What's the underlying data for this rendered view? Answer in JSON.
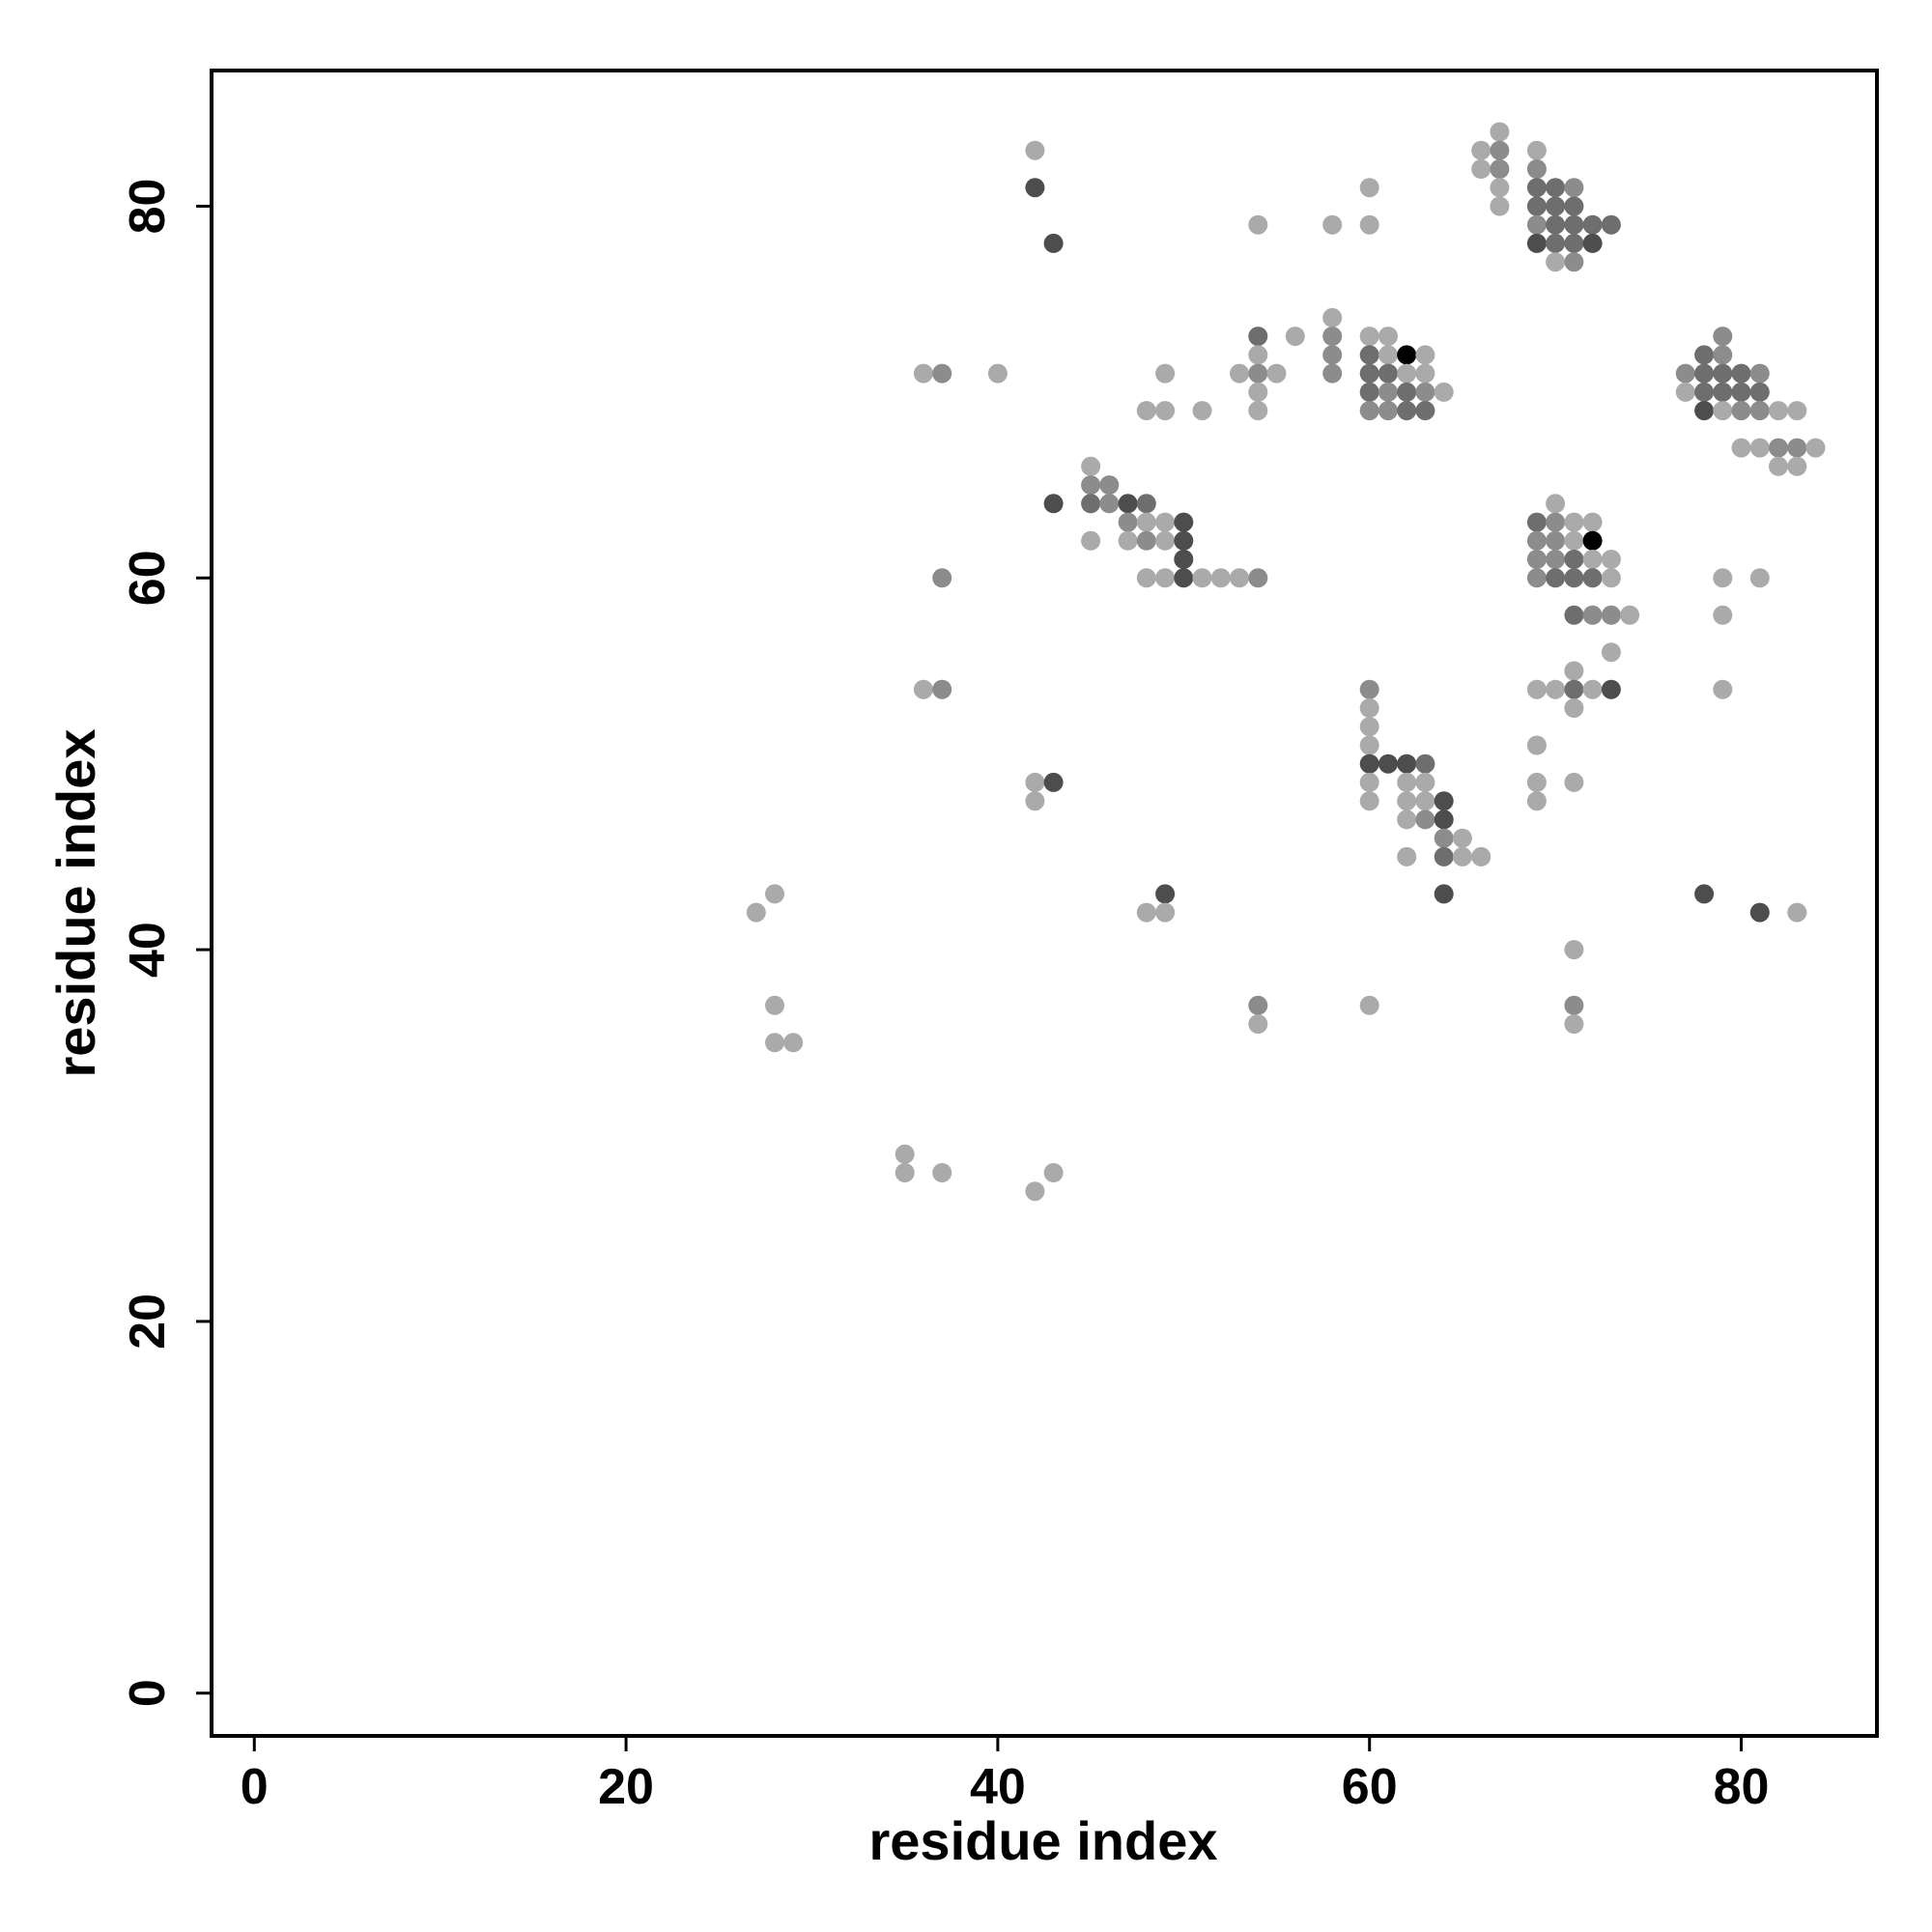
{
  "chart_data": {
    "type": "scatter",
    "title": "",
    "xlabel": "residue index",
    "ylabel": "residue index",
    "xlim": [
      -2.3,
      87.3
    ],
    "ylim": [
      -2.3,
      87.3
    ],
    "xticks": [
      0,
      20,
      40,
      60,
      80
    ],
    "yticks": [
      0,
      20,
      40,
      60,
      80
    ],
    "grid": false,
    "legend": "none",
    "shade_colors": {
      "1": "#aaaaaa",
      "2": "#8c8c8c",
      "3": "#6e6e6e",
      "4": "#4d4d4d",
      "5": "#000000"
    },
    "points": [
      [
        66,
        83,
        1
      ],
      [
        67,
        84,
        1
      ],
      [
        67,
        83,
        2
      ],
      [
        66,
        82,
        1
      ],
      [
        67,
        82,
        2
      ],
      [
        67,
        81,
        1
      ],
      [
        67,
        80,
        1
      ],
      [
        69,
        83,
        1
      ],
      [
        69,
        82,
        2
      ],
      [
        69,
        81,
        3
      ],
      [
        70,
        81,
        3
      ],
      [
        71,
        81,
        2
      ],
      [
        69,
        80,
        3
      ],
      [
        70,
        80,
        3
      ],
      [
        71,
        80,
        3
      ],
      [
        69,
        79,
        2
      ],
      [
        70,
        79,
        3
      ],
      [
        71,
        79,
        3
      ],
      [
        72,
        79,
        3
      ],
      [
        73,
        79,
        3
      ],
      [
        69,
        78,
        4
      ],
      [
        70,
        78,
        3
      ],
      [
        71,
        78,
        3
      ],
      [
        72,
        78,
        4
      ],
      [
        70,
        77,
        1
      ],
      [
        71,
        77,
        2
      ],
      [
        42,
        83,
        1
      ],
      [
        42,
        81,
        4
      ],
      [
        43,
        78,
        4
      ],
      [
        54,
        79,
        1
      ],
      [
        58,
        79,
        1
      ],
      [
        60,
        81,
        1
      ],
      [
        60,
        79,
        1
      ],
      [
        58,
        74,
        1
      ],
      [
        58,
        73,
        2
      ],
      [
        58,
        72,
        2
      ],
      [
        58,
        71,
        2
      ],
      [
        56,
        73,
        1
      ],
      [
        54,
        73,
        3
      ],
      [
        54,
        72,
        1
      ],
      [
        53,
        71,
        1
      ],
      [
        54,
        71,
        2
      ],
      [
        55,
        71,
        1
      ],
      [
        54,
        70,
        1
      ],
      [
        54,
        69,
        1
      ],
      [
        60,
        73,
        1
      ],
      [
        61,
        73,
        1
      ],
      [
        60,
        72,
        3
      ],
      [
        61,
        72,
        1
      ],
      [
        62,
        72,
        5
      ],
      [
        63,
        72,
        1
      ],
      [
        60,
        71,
        3
      ],
      [
        61,
        71,
        3
      ],
      [
        62,
        71,
        1
      ],
      [
        63,
        71,
        1
      ],
      [
        60,
        70,
        3
      ],
      [
        61,
        70,
        2
      ],
      [
        62,
        70,
        3
      ],
      [
        63,
        70,
        2
      ],
      [
        64,
        70,
        1
      ],
      [
        60,
        69,
        2
      ],
      [
        61,
        69,
        2
      ],
      [
        62,
        69,
        3
      ],
      [
        63,
        69,
        3
      ],
      [
        36,
        71,
        1
      ],
      [
        37,
        71,
        2
      ],
      [
        40,
        71,
        1
      ],
      [
        49,
        71,
        1
      ],
      [
        48,
        69,
        1
      ],
      [
        49,
        69,
        1
      ],
      [
        51,
        69,
        1
      ],
      [
        78,
        72,
        3
      ],
      [
        79,
        73,
        2
      ],
      [
        79,
        72,
        2
      ],
      [
        77,
        71,
        2
      ],
      [
        78,
        71,
        3
      ],
      [
        79,
        71,
        3
      ],
      [
        80,
        71,
        3
      ],
      [
        81,
        71,
        2
      ],
      [
        77,
        70,
        1
      ],
      [
        78,
        70,
        3
      ],
      [
        79,
        70,
        3
      ],
      [
        80,
        70,
        3
      ],
      [
        81,
        70,
        3
      ],
      [
        78,
        69,
        4
      ],
      [
        79,
        69,
        1
      ],
      [
        80,
        69,
        2
      ],
      [
        81,
        69,
        2
      ],
      [
        82,
        69,
        1
      ],
      [
        83,
        69,
        1
      ],
      [
        80,
        67,
        1
      ],
      [
        81,
        67,
        1
      ],
      [
        82,
        67,
        2
      ],
      [
        83,
        67,
        2
      ],
      [
        84,
        67,
        1
      ],
      [
        82,
        66,
        1
      ],
      [
        83,
        66,
        1
      ],
      [
        45,
        66,
        1
      ],
      [
        45,
        65,
        2
      ],
      [
        46,
        65,
        2
      ],
      [
        45,
        64,
        3
      ],
      [
        46,
        64,
        2
      ],
      [
        47,
        64,
        4
      ],
      [
        48,
        64,
        3
      ],
      [
        43,
        64,
        4
      ],
      [
        47,
        63,
        2
      ],
      [
        48,
        63,
        1
      ],
      [
        49,
        63,
        1
      ],
      [
        50,
        63,
        4
      ],
      [
        45,
        62,
        1
      ],
      [
        47,
        62,
        1
      ],
      [
        48,
        62,
        2
      ],
      [
        49,
        62,
        1
      ],
      [
        50,
        62,
        4
      ],
      [
        50,
        61,
        4
      ],
      [
        48,
        60,
        1
      ],
      [
        49,
        60,
        1
      ],
      [
        50,
        60,
        4
      ],
      [
        51,
        60,
        1
      ],
      [
        52,
        60,
        1
      ],
      [
        53,
        60,
        1
      ],
      [
        54,
        60,
        2
      ],
      [
        37,
        60,
        2
      ],
      [
        70,
        64,
        1
      ],
      [
        69,
        63,
        3
      ],
      [
        70,
        63,
        2
      ],
      [
        71,
        63,
        1
      ],
      [
        72,
        63,
        1
      ],
      [
        69,
        62,
        2
      ],
      [
        70,
        62,
        2
      ],
      [
        71,
        62,
        1
      ],
      [
        72,
        62,
        5
      ],
      [
        69,
        61,
        2
      ],
      [
        70,
        61,
        2
      ],
      [
        71,
        61,
        3
      ],
      [
        72,
        61,
        1
      ],
      [
        73,
        61,
        1
      ],
      [
        69,
        60,
        2
      ],
      [
        70,
        60,
        3
      ],
      [
        71,
        60,
        3
      ],
      [
        72,
        60,
        3
      ],
      [
        73,
        60,
        1
      ],
      [
        71,
        58,
        3
      ],
      [
        72,
        58,
        2
      ],
      [
        73,
        58,
        2
      ],
      [
        74,
        58,
        1
      ],
      [
        73,
        56,
        1
      ],
      [
        71,
        55,
        1
      ],
      [
        69,
        54,
        1
      ],
      [
        70,
        54,
        1
      ],
      [
        71,
        54,
        3
      ],
      [
        72,
        54,
        1
      ],
      [
        73,
        54,
        4
      ],
      [
        71,
        53,
        1
      ],
      [
        79,
        60,
        1
      ],
      [
        81,
        60,
        1
      ],
      [
        79,
        58,
        1
      ],
      [
        79,
        54,
        1
      ],
      [
        36,
        54,
        1
      ],
      [
        37,
        54,
        2
      ],
      [
        60,
        54,
        2
      ],
      [
        60,
        53,
        1
      ],
      [
        60,
        52,
        1
      ],
      [
        60,
        51,
        1
      ],
      [
        60,
        50,
        4
      ],
      [
        61,
        50,
        4
      ],
      [
        62,
        50,
        4
      ],
      [
        63,
        50,
        3
      ],
      [
        60,
        49,
        1
      ],
      [
        62,
        49,
        1
      ],
      [
        63,
        49,
        1
      ],
      [
        60,
        48,
        1
      ],
      [
        62,
        48,
        1
      ],
      [
        63,
        48,
        1
      ],
      [
        64,
        48,
        4
      ],
      [
        62,
        47,
        1
      ],
      [
        63,
        47,
        2
      ],
      [
        64,
        47,
        4
      ],
      [
        64,
        46,
        2
      ],
      [
        65,
        46,
        1
      ],
      [
        62,
        45,
        1
      ],
      [
        64,
        45,
        3
      ],
      [
        65,
        45,
        1
      ],
      [
        66,
        45,
        1
      ],
      [
        64,
        43,
        4
      ],
      [
        69,
        51,
        1
      ],
      [
        69,
        49,
        1
      ],
      [
        69,
        48,
        1
      ],
      [
        71,
        49,
        1
      ],
      [
        42,
        49,
        1
      ],
      [
        43,
        49,
        4
      ],
      [
        42,
        48,
        1
      ],
      [
        49,
        43,
        4
      ],
      [
        48,
        42,
        1
      ],
      [
        49,
        42,
        1
      ],
      [
        78,
        43,
        4
      ],
      [
        81,
        42,
        4
      ],
      [
        83,
        42,
        1
      ],
      [
        27,
        42,
        1
      ],
      [
        28,
        43,
        1
      ],
      [
        28,
        37,
        1
      ],
      [
        28,
        35,
        1
      ],
      [
        29,
        35,
        1
      ],
      [
        54,
        37,
        2
      ],
      [
        54,
        36,
        1
      ],
      [
        60,
        37,
        1
      ],
      [
        71,
        40,
        1
      ],
      [
        71,
        37,
        2
      ],
      [
        71,
        36,
        1
      ],
      [
        35,
        29,
        1
      ],
      [
        35,
        28,
        1
      ],
      [
        37,
        28,
        1
      ],
      [
        42,
        27,
        1
      ],
      [
        43,
        28,
        1
      ]
    ]
  }
}
